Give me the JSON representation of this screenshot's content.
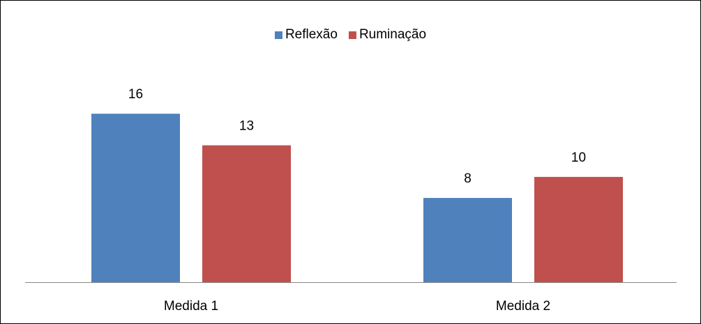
{
  "chart_data": {
    "type": "bar",
    "categories": [
      "Medida 1",
      "Medida 2"
    ],
    "series": [
      {
        "name": "Reflexão",
        "color": "#4f81bd",
        "values": [
          16,
          8
        ]
      },
      {
        "name": "Ruminação",
        "color": "#c0504d",
        "values": [
          13,
          10
        ]
      }
    ],
    "ylim": [
      0,
      18
    ],
    "legend": "top"
  }
}
